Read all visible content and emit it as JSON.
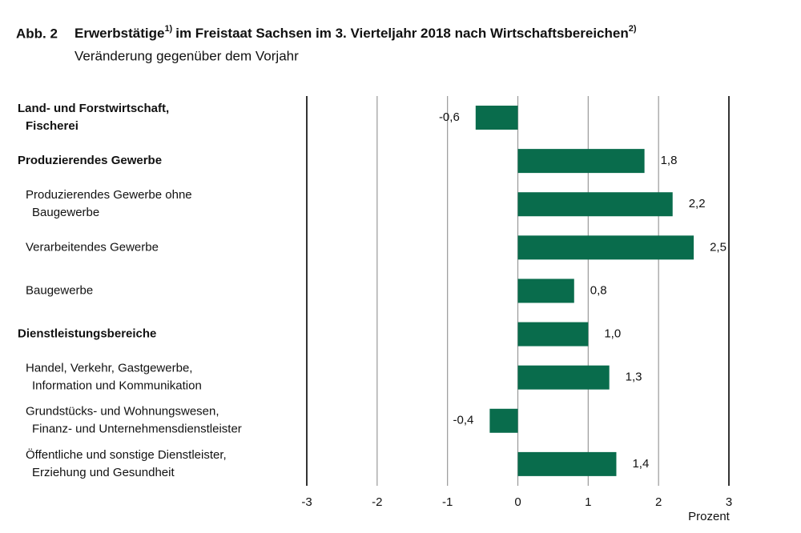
{
  "chart_data": {
    "type": "hbar",
    "figure_number": "Abb. 2",
    "title": [
      "Erwerbstätige",
      "1)",
      "im Freistaat Sachsen im 3. Vierteljahr 2018 nach Wirtschaftsbereichen",
      "2)"
    ],
    "subtitle": "Veränderung gegenüber dem Vorjahr",
    "x_label": "Prozent",
    "categories": [
      [
        "Land- und Forstwirtschaft,",
        "Fischerei"
      ],
      [
        "Produzierendes Gewerbe"
      ],
      [
        "Produzierendes Gewerbe ohne",
        "Baugewerbe"
      ],
      [
        "Verarbeitendes Gewerbe"
      ],
      [
        "Baugewerbe"
      ],
      [
        "Dienstleistungsbereiche"
      ],
      [
        "Handel, Verkehr, Gastgewerbe,",
        "Information und Kommunikation"
      ],
      [
        "Grundstücks- und Wohnungswesen,",
        "Finanz- und Unternehmensdienstleister"
      ],
      [
        "Öffentliche und sonstige Dienstleister,",
        "Erziehung und Gesundheit"
      ]
    ],
    "category_bold": [
      true,
      true,
      false,
      false,
      false,
      true,
      false,
      false,
      false
    ],
    "values": [
      -0.6,
      1.8,
      2.2,
      2.5,
      0.8,
      1.0,
      1.3,
      -0.4,
      1.4
    ],
    "value_labels": [
      "-0,6",
      "1,8",
      "2,2",
      "2,5",
      "0,8",
      "1,0",
      "1,3",
      "-0,4",
      "1,4"
    ],
    "color": "#096c4c",
    "xlim": [
      -3,
      3
    ],
    "xticks": [
      -3,
      -2,
      -1,
      0,
      1,
      2,
      3
    ],
    "grid": true
  }
}
